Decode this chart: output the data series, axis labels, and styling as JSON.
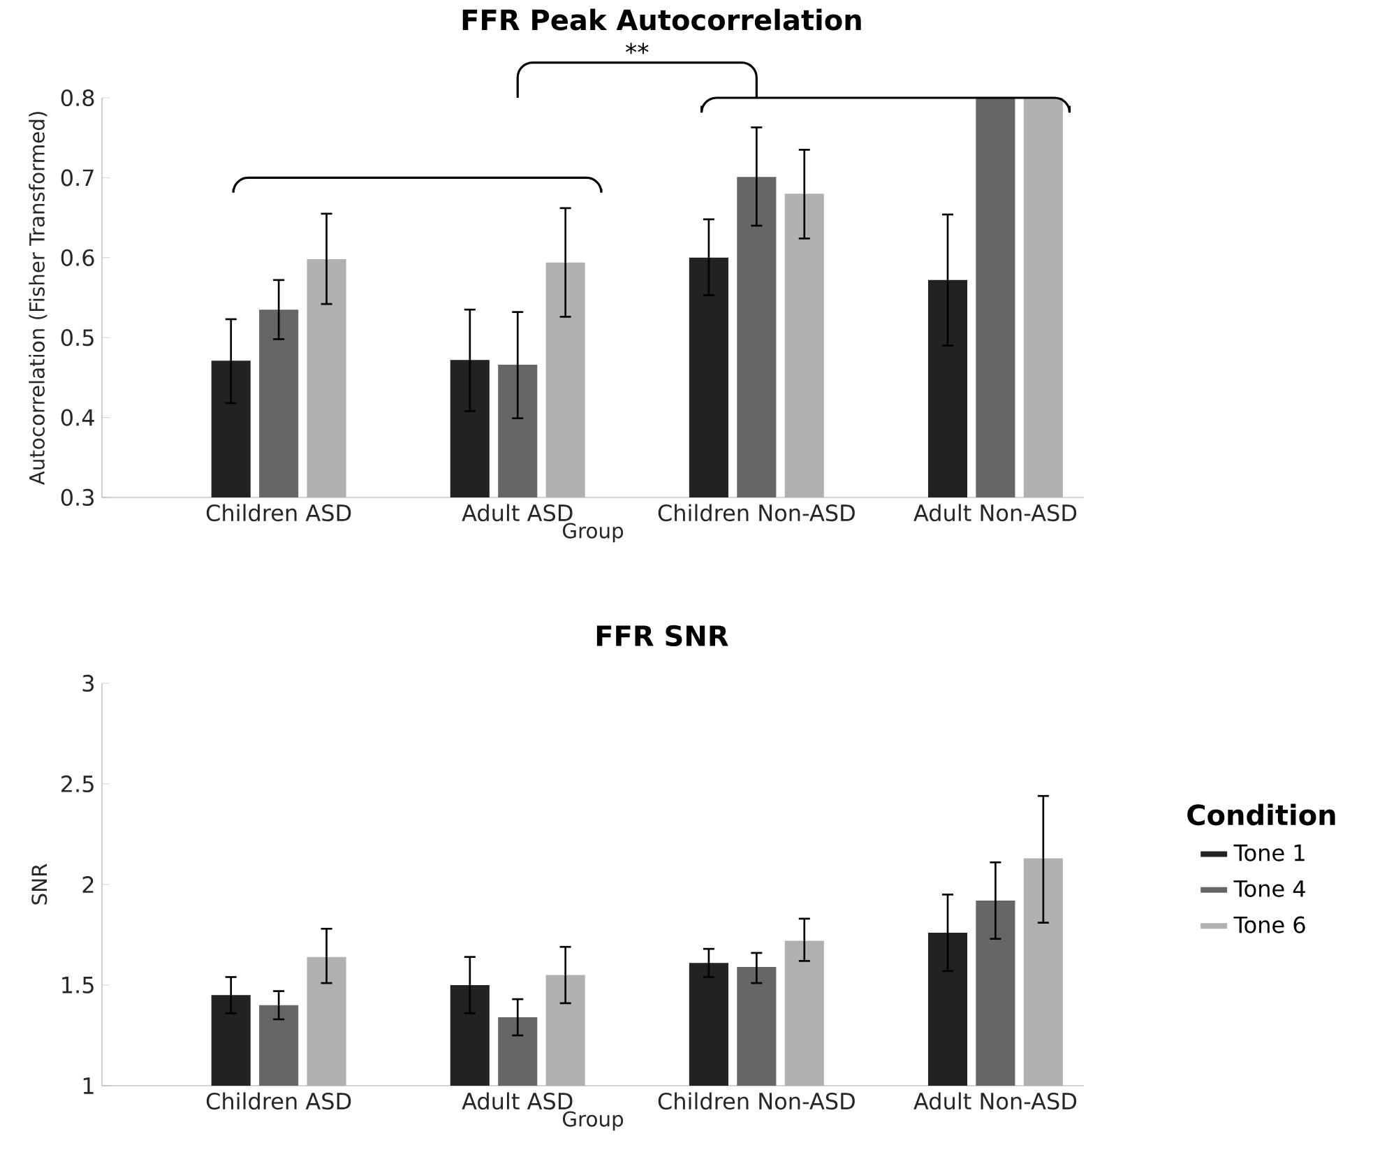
{
  "chart_data": [
    {
      "type": "bar",
      "title": "FFR Peak Autocorrelation",
      "xlabel": "Group",
      "ylabel": "Autocorrelation (Fisher Transformed)",
      "categories": [
        "Children ASD",
        "Adult ASD",
        "Children Non-ASD",
        "Adult Non-ASD"
      ],
      "series": [
        {
          "color": "#222222",
          "values": [
            0.471,
            0.472,
            0.6,
            0.572
          ],
          "errors": [
            [
              0.418,
              0.523
            ],
            [
              0.408,
              0.535
            ],
            [
              0.553,
              0.648
            ],
            [
              0.49,
              0.654
            ]
          ]
        },
        {
          "color": "#666666",
          "values": [
            0.535,
            0.466,
            0.701,
            0.8
          ],
          "errors": [
            [
              0.498,
              0.572
            ],
            [
              0.399,
              0.532
            ],
            [
              0.64,
              0.763
            ],
            null
          ]
        },
        {
          "color": "#b0b0b0",
          "values": [
            0.598,
            0.594,
            0.68,
            0.8
          ],
          "errors": [
            [
              0.542,
              0.655
            ],
            [
              0.526,
              0.662
            ],
            [
              0.624,
              0.735
            ],
            null
          ]
        }
      ],
      "ylim": [
        0.3,
        0.8
      ],
      "yticks": [
        0.3,
        0.4,
        0.5,
        0.6,
        0.7,
        0.8
      ],
      "annotations": [
        "**"
      ]
    },
    {
      "type": "bar",
      "title": "FFR SNR",
      "xlabel": "Group",
      "ylabel": "SNR",
      "legend_title": "Condition",
      "legend": "right",
      "categories": [
        "Children ASD",
        "Adult ASD",
        "Children Non-ASD",
        "Adult Non-ASD"
      ],
      "series": [
        {
          "name": "Tone 1",
          "color": "#222222",
          "values": [
            1.45,
            1.5,
            1.61,
            1.76
          ],
          "errors": [
            [
              1.36,
              1.54
            ],
            [
              1.36,
              1.64
            ],
            [
              1.54,
              1.68
            ],
            [
              1.57,
              1.95
            ]
          ]
        },
        {
          "name": "Tone 4",
          "color": "#666666",
          "values": [
            1.4,
            1.34,
            1.59,
            1.92
          ],
          "errors": [
            [
              1.33,
              1.47
            ],
            [
              1.25,
              1.43
            ],
            [
              1.51,
              1.66
            ],
            [
              1.73,
              2.11
            ]
          ]
        },
        {
          "name": "Tone 6",
          "color": "#b0b0b0",
          "values": [
            1.64,
            1.55,
            1.72,
            2.13
          ],
          "errors": [
            [
              1.51,
              1.78
            ],
            [
              1.41,
              1.69
            ],
            [
              1.62,
              1.83
            ],
            [
              1.81,
              2.44
            ]
          ]
        }
      ],
      "ylim": [
        1,
        3
      ],
      "yticks": [
        1,
        1.5,
        2,
        2.5,
        3
      ]
    }
  ]
}
